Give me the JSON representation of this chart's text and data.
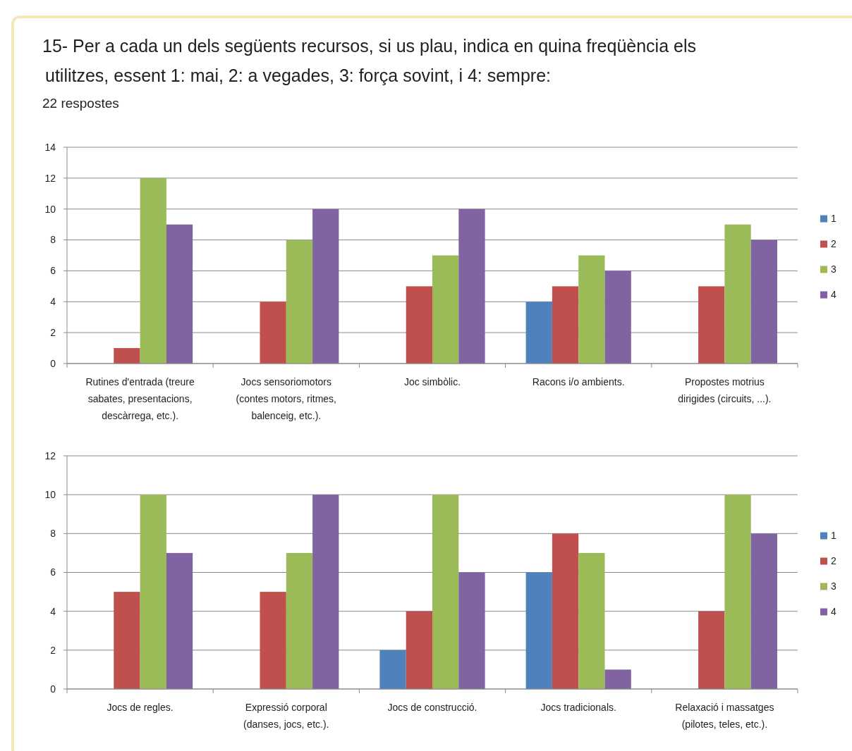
{
  "chart_data": [
    {
      "type": "bar",
      "title": "15- Per a cada un dels següents recursos, si us plau, indica en quina freqüència els utilitzes, essent 1: mai, 2: a vegades, 3: força sovint, i 4: sempre:",
      "subtitle": "22 respostes",
      "categories": [
        "Rutines d'entrada (treure sabates, presentacions, descàrrega, etc.).",
        "Jocs sensoriomotors (contes motors, ritmes, balenceig, etc.).",
        "Joc simbòlic.",
        "Racons i/o ambients.",
        "Propostes motrius dirigides (circuits, ...)."
      ],
      "series": [
        {
          "name": "1",
          "color": "#4f81bd",
          "values": [
            0,
            0,
            0,
            4,
            0
          ]
        },
        {
          "name": "2",
          "color": "#c0504d",
          "values": [
            1,
            4,
            5,
            5,
            5
          ]
        },
        {
          "name": "3",
          "color": "#9bbb59",
          "values": [
            12,
            8,
            7,
            7,
            9
          ]
        },
        {
          "name": "4",
          "color": "#8064a2",
          "values": [
            9,
            10,
            10,
            6,
            8
          ]
        }
      ],
      "ylim": [
        0,
        14
      ],
      "yticks": [
        0,
        2,
        4,
        6,
        8,
        10,
        12,
        14
      ],
      "grid": "y",
      "legend": "right"
    },
    {
      "type": "bar",
      "categories": [
        "Jocs de regles.",
        "Expressió corporal (danses, jocs, etc.).",
        "Jocs de construcció.",
        "Jocs tradicionals.",
        "Relaxació i massatges (pilotes, teles, etc.)."
      ],
      "series": [
        {
          "name": "1",
          "color": "#4f81bd",
          "values": [
            0,
            0,
            2,
            6,
            0
          ]
        },
        {
          "name": "2",
          "color": "#c0504d",
          "values": [
            5,
            5,
            4,
            8,
            4
          ]
        },
        {
          "name": "3",
          "color": "#9bbb59",
          "values": [
            10,
            7,
            10,
            7,
            10
          ]
        },
        {
          "name": "4",
          "color": "#8064a2",
          "values": [
            7,
            10,
            6,
            1,
            8
          ]
        }
      ],
      "ylim": [
        0,
        12
      ],
      "yticks": [
        0,
        2,
        4,
        6,
        8,
        10,
        12
      ],
      "grid": "y",
      "legend": "right"
    }
  ]
}
